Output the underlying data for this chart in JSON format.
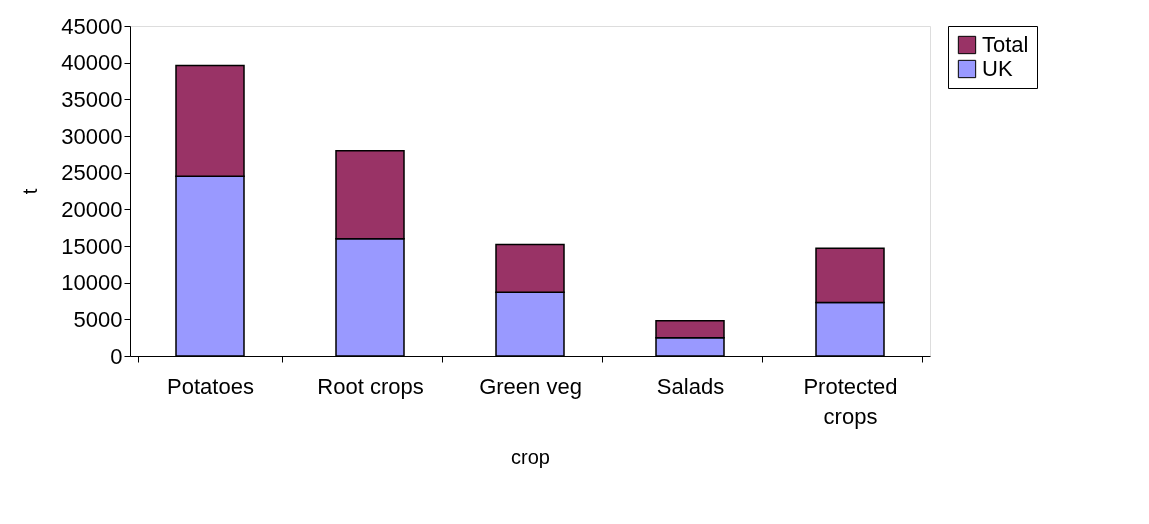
{
  "chart_data": {
    "type": "bar",
    "stacked": true,
    "xlabel": "crop",
    "ylabel": "t",
    "categories": [
      "Potatoes",
      "Root crops",
      "Green veg",
      "Salads",
      "Protected crops"
    ],
    "series": [
      {
        "name": "UK",
        "color": "#9999ff",
        "values": [
          24500,
          16000,
          8700,
          2500,
          7300
        ]
      },
      {
        "name": "Total",
        "color": "#993366",
        "values": [
          15100,
          12000,
          6500,
          2300,
          7400
        ]
      }
    ],
    "ylim": [
      0,
      45000
    ],
    "yticks": [
      0,
      5000,
      10000,
      15000,
      20000,
      25000,
      30000,
      35000,
      40000,
      45000
    ],
    "grid": false,
    "legend": "right"
  }
}
